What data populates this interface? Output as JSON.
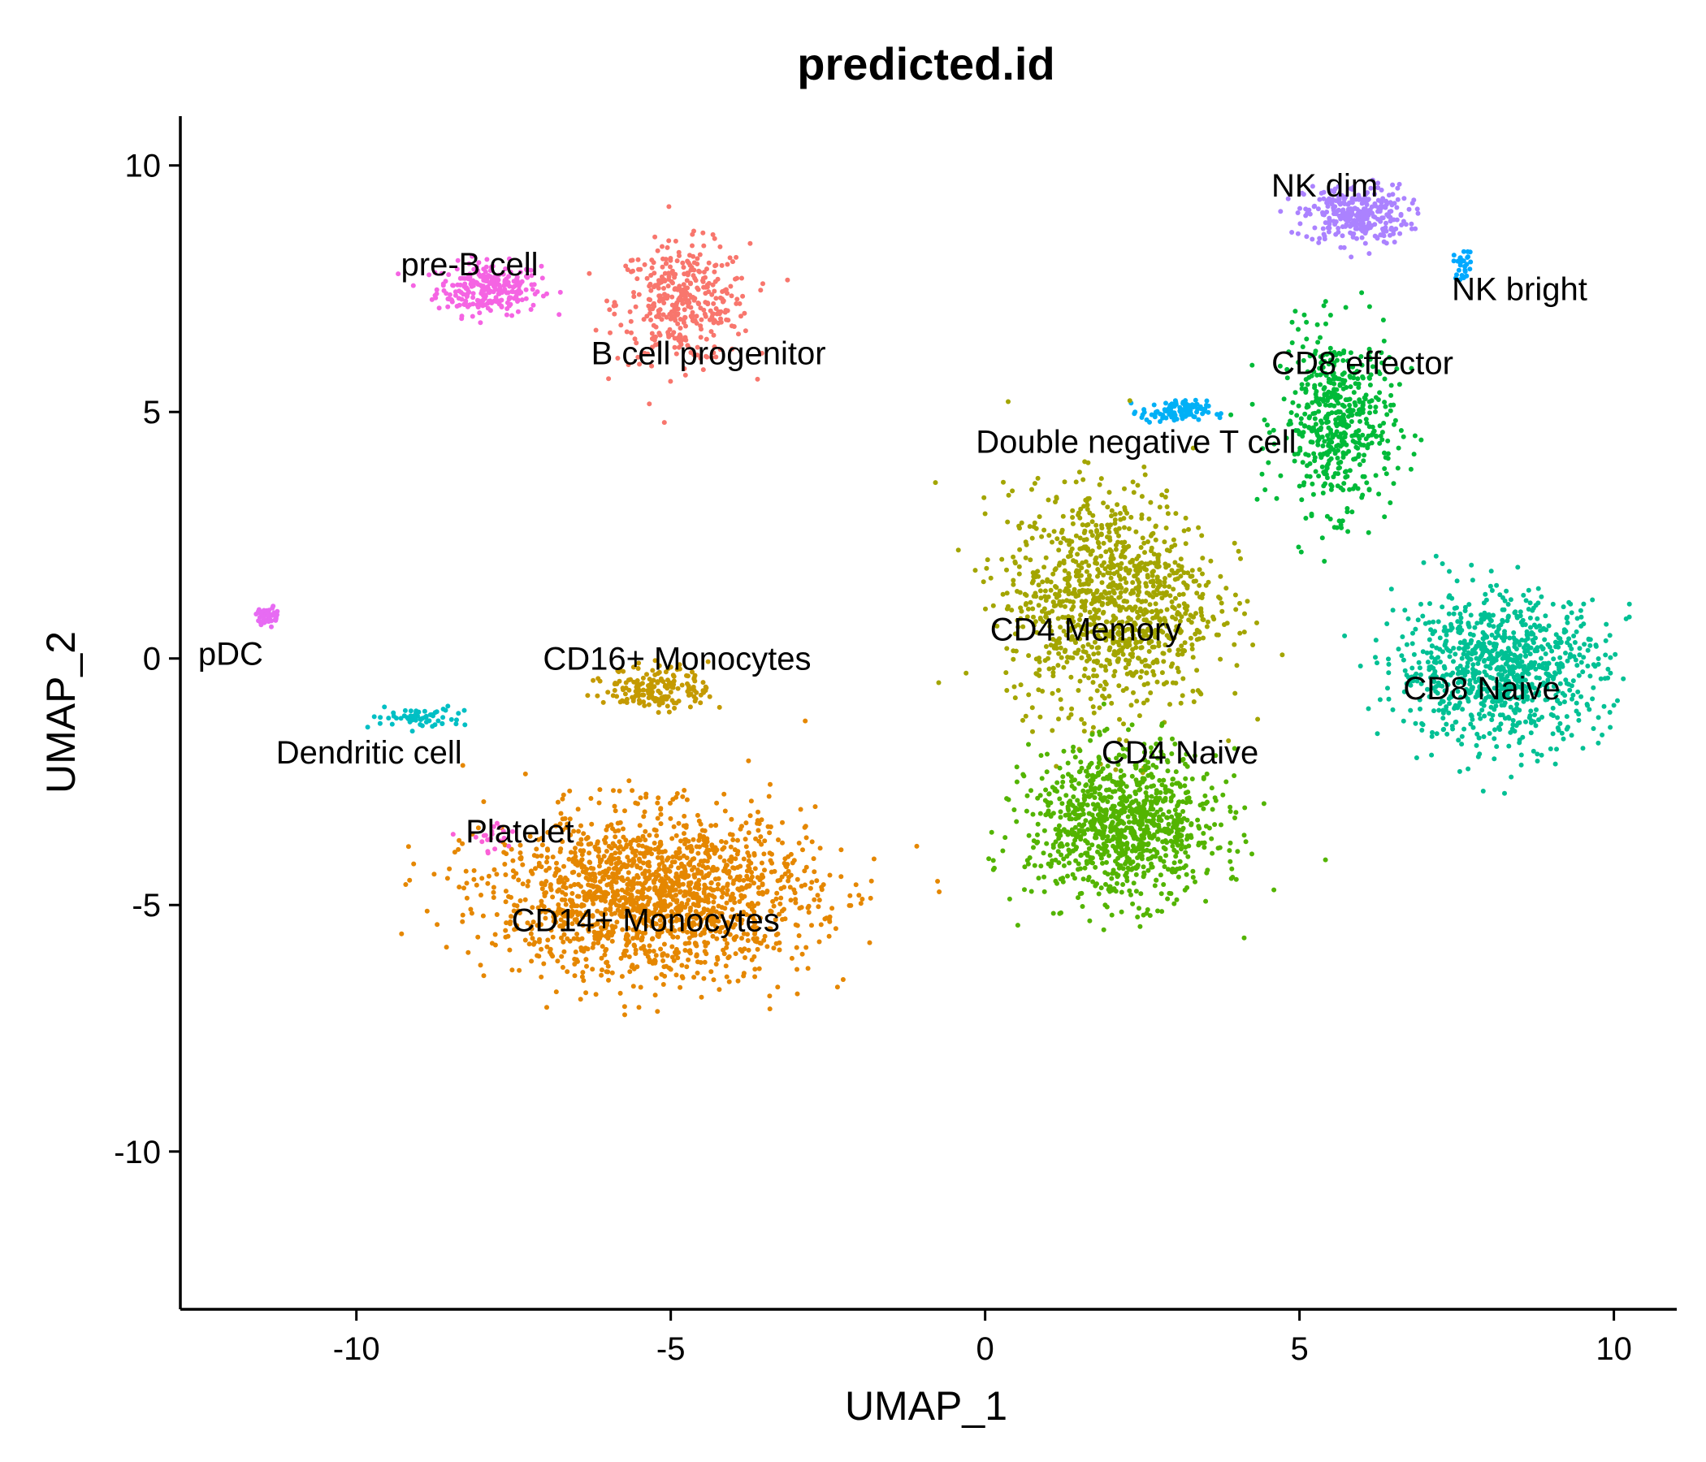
{
  "chart_data": {
    "type": "scatter",
    "title": "predicted.id",
    "xlabel": "UMAP_1",
    "ylabel": "UMAP_2",
    "xlim": [
      -12.8,
      11.0
    ],
    "ylim": [
      -13.2,
      11.0
    ],
    "xticks": [
      -10,
      -5,
      0,
      5,
      10
    ],
    "yticks": [
      -10,
      -5,
      0,
      5,
      10
    ],
    "xtick_labels": [
      "-10",
      "-5",
      "0",
      "5",
      "10"
    ],
    "ytick_labels": [
      "-10",
      "-5",
      "0",
      "5",
      "10"
    ],
    "grid": false,
    "legend": "none",
    "clusters": [
      {
        "label": "pre-B cell",
        "color": "#F564E3",
        "center": [
          -7.9,
          7.5
        ],
        "spread": [
          0.55,
          0.35
        ],
        "n": 260,
        "label_pos": [
          -8.2,
          8.0
        ]
      },
      {
        "label": "B cell progenitor",
        "color": "#F8766D",
        "center": [
          -4.8,
          7.2
        ],
        "spread": [
          0.7,
          0.8
        ],
        "n": 380,
        "label_pos": [
          -4.4,
          6.2
        ]
      },
      {
        "label": "NK dim",
        "color": "#AB82FF",
        "center": [
          5.9,
          9.0
        ],
        "spread": [
          0.55,
          0.4
        ],
        "n": 300,
        "label_pos": [
          5.4,
          9.6
        ]
      },
      {
        "label": "NK bright",
        "color": "#00A9FF",
        "center": [
          7.6,
          8.0
        ],
        "spread": [
          0.1,
          0.2
        ],
        "n": 30,
        "label_pos": [
          8.5,
          7.5
        ]
      },
      {
        "label": "CD8 effector",
        "color": "#00BA38",
        "center": [
          5.6,
          4.8
        ],
        "spread": [
          0.6,
          1.2
        ],
        "n": 520,
        "label_pos": [
          6.0,
          6.0
        ]
      },
      {
        "label": "Double negative T cell",
        "color": "#00B0F6",
        "center": [
          3.0,
          5.0
        ],
        "spread": [
          0.35,
          0.15
        ],
        "n": 110,
        "label_pos": [
          2.4,
          4.4
        ]
      },
      {
        "label": "CD4 Memory",
        "color": "#A3A500",
        "center": [
          2.0,
          1.2
        ],
        "spread": [
          1.1,
          1.5
        ],
        "n": 1100,
        "label_pos": [
          1.6,
          0.6
        ]
      },
      {
        "label": "CD4 Naive",
        "color": "#53B400",
        "center": [
          2.2,
          -3.4
        ],
        "spread": [
          1.0,
          1.0
        ],
        "n": 1000,
        "label_pos": [
          3.1,
          -1.9
        ]
      },
      {
        "label": "CD8 Naive",
        "color": "#00C094",
        "center": [
          8.2,
          -0.2
        ],
        "spread": [
          1.1,
          1.0
        ],
        "n": 900,
        "label_pos": [
          7.9,
          -0.6
        ]
      },
      {
        "label": "CD14+ Monocytes",
        "color": "#E58700",
        "center": [
          -5.3,
          -4.8
        ],
        "spread": [
          1.7,
          1.1
        ],
        "n": 1700,
        "label_pos": [
          -5.4,
          -5.3
        ]
      },
      {
        "label": "CD16+ Monocytes",
        "color": "#C49A00",
        "center": [
          -5.2,
          -0.6
        ],
        "spread": [
          0.55,
          0.3
        ],
        "n": 180,
        "label_pos": [
          -4.9,
          0.0
        ]
      },
      {
        "label": "Platelet",
        "color": "#FB61D7",
        "center": [
          -7.8,
          -3.6
        ],
        "spread": [
          0.3,
          0.25
        ],
        "n": 20,
        "label_pos": [
          -7.4,
          -3.5
        ]
      },
      {
        "label": "Dendritic cell",
        "color": "#00BFC4",
        "center": [
          -9.0,
          -1.2
        ],
        "spread": [
          0.5,
          0.15
        ],
        "n": 60,
        "label_pos": [
          -9.8,
          -1.9
        ]
      },
      {
        "label": "pDC",
        "color": "#E76BF3",
        "center": [
          -11.4,
          0.85
        ],
        "spread": [
          0.12,
          0.12
        ],
        "n": 45,
        "label_pos": [
          -12.0,
          0.1
        ]
      }
    ]
  }
}
